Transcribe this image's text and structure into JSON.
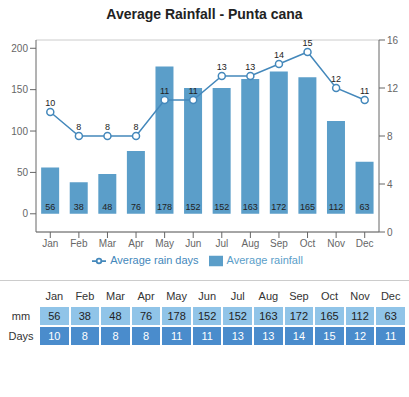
{
  "chart_data": {
    "type": "bar",
    "title": "Average Rainfall - Punta cana",
    "categories": [
      "Jan",
      "Feb",
      "Mar",
      "Apr",
      "May",
      "Jun",
      "Jul",
      "Aug",
      "Sep",
      "Oct",
      "Nov",
      "Dec"
    ],
    "series": [
      {
        "name": "Average rainfall",
        "type": "bar",
        "color": "#5b9ec9",
        "values": [
          56,
          38,
          48,
          76,
          178,
          152,
          152,
          163,
          172,
          165,
          112,
          63
        ]
      },
      {
        "name": "Average rain days",
        "type": "line",
        "color": "#4488bb",
        "marker": "circle",
        "axis": "y2",
        "values": [
          10,
          8,
          8,
          8,
          11,
          11,
          13,
          13,
          14,
          15,
          12,
          11
        ]
      }
    ],
    "ylim": [
      -22,
      210
    ],
    "yticks": [
      0,
      50,
      100,
      150,
      200
    ],
    "y2lim": [
      0,
      16
    ],
    "y2ticks": [
      0,
      4,
      8,
      12,
      16
    ],
    "grid": true,
    "data_labels": true,
    "legend": "bottom",
    "annotations": [
      "mm",
      "Days"
    ]
  }
}
